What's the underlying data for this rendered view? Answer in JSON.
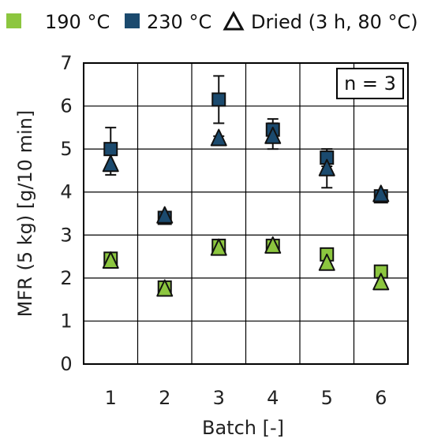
{
  "chart_data": {
    "type": "scatter",
    "title": "",
    "xlabel": "Batch   [-]",
    "ylabel": "MFR (5 kg)   [g/10 min]",
    "categories": [
      "1",
      "2",
      "3",
      "4",
      "5",
      "6"
    ],
    "xlim": [
      0.5,
      6.5
    ],
    "ylim": [
      0,
      7
    ],
    "yticks": [
      "0",
      "1",
      "2",
      "3",
      "4",
      "5",
      "6",
      "7"
    ],
    "grid": true,
    "legend_position": "top",
    "annotation": "n = 3",
    "series": [
      {
        "name": "190 °C",
        "marker": "square",
        "color": "#8cc63f",
        "values": [
          2.45,
          1.78,
          2.75,
          2.75,
          2.55,
          2.15
        ],
        "errors": [
          0.05,
          0.08,
          0.08,
          0.05,
          0.05,
          0.05
        ]
      },
      {
        "name": "230 °C",
        "marker": "square",
        "color": "#1b4a6e",
        "values": [
          5.0,
          3.4,
          6.15,
          5.45,
          4.8,
          3.9
        ],
        "errors": [
          0.5,
          0.05,
          0.55,
          0.25,
          0.2,
          0.05
        ]
      },
      {
        "name": "Dried (3 h, 80 °C)",
        "marker": "triangle",
        "color_by_temperature": {
          "190 °C": "#8cc63f",
          "230 °C": "#1b4a6e"
        },
        "values_190": [
          2.4,
          1.75,
          2.7,
          2.75,
          2.35,
          1.9
        ],
        "values_230": [
          4.65,
          3.45,
          5.25,
          5.3,
          4.55,
          3.95
        ],
        "errors_230": [
          0.25,
          0.05,
          0.05,
          0.3,
          0.45,
          0.05
        ]
      }
    ]
  }
}
